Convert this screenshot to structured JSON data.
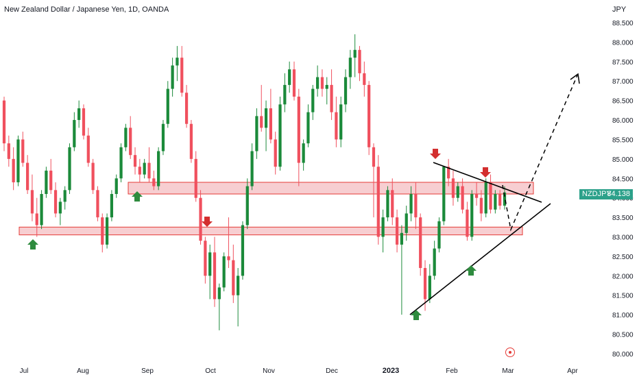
{
  "header": {
    "title": "New Zealand Dollar / Japanese Yen, 1D, OANDA",
    "currency": "JPY"
  },
  "price_tag": {
    "symbol": "NZDJPY",
    "value": "84.138",
    "color": "#2ca18a"
  },
  "icons": {
    "bottom_marker": "target-icon"
  },
  "colors": {
    "up": "#1b8a3a",
    "down": "#f0505e",
    "zone_fill": "#f6c6c9",
    "zone_border": "#e53935",
    "arrow_up": "#2e8b3e",
    "arrow_down": "#d32f2f",
    "trendline": "#000000"
  },
  "chart_data": {
    "type": "candlestick",
    "title": "New Zealand Dollar / Japanese Yen, 1D, OANDA",
    "ylabel": "JPY",
    "ylim": [
      79.9,
      88.7
    ],
    "y_ticks": [
      "80.000",
      "80.500",
      "81.000",
      "81.500",
      "82.000",
      "82.500",
      "83.000",
      "83.500",
      "84.000",
      "84.500",
      "85.000",
      "85.500",
      "86.000",
      "86.500",
      "87.000",
      "87.500",
      "88.000",
      "88.500"
    ],
    "x_ticks": [
      "Jul",
      "Aug",
      "Sep",
      "Oct",
      "Nov",
      "Dec",
      "2023",
      "Feb",
      "Mar",
      "Apr"
    ],
    "last_price": 84.138,
    "series": [
      {
        "ohlc": [
          [
            86.5,
            86.6,
            85.2,
            85.4
          ],
          [
            85.4,
            85.6,
            84.8,
            85.0
          ],
          [
            85.0,
            85.3,
            84.2,
            84.4
          ],
          [
            84.4,
            85.6,
            84.3,
            85.5
          ],
          [
            85.5,
            85.7,
            84.8,
            84.9
          ],
          [
            84.9,
            85.1,
            84.1,
            84.2
          ],
          [
            84.2,
            84.6,
            83.4,
            83.6
          ],
          [
            83.6,
            84.0,
            83.0,
            83.3
          ],
          [
            83.3,
            84.2,
            83.2,
            84.1
          ],
          [
            84.1,
            84.8,
            84.0,
            84.7
          ],
          [
            84.7,
            85.0,
            84.1,
            84.2
          ],
          [
            84.2,
            84.4,
            83.5,
            83.6
          ],
          [
            83.6,
            84.0,
            83.3,
            83.9
          ],
          [
            83.9,
            84.3,
            83.7,
            84.2
          ],
          [
            84.2,
            85.4,
            84.1,
            85.3
          ],
          [
            85.3,
            86.2,
            85.2,
            86.0
          ],
          [
            86.0,
            86.5,
            85.8,
            86.3
          ],
          [
            86.3,
            86.4,
            85.5,
            85.6
          ],
          [
            85.6,
            85.8,
            84.8,
            84.9
          ],
          [
            84.9,
            85.0,
            84.1,
            84.2
          ],
          [
            84.2,
            84.3,
            83.4,
            83.5
          ],
          [
            83.5,
            83.6,
            82.6,
            82.8
          ],
          [
            82.8,
            83.6,
            82.7,
            83.5
          ],
          [
            83.5,
            84.2,
            83.4,
            84.1
          ],
          [
            84.1,
            84.6,
            84.0,
            84.5
          ],
          [
            84.5,
            85.4,
            84.4,
            85.3
          ],
          [
            85.3,
            85.9,
            85.2,
            85.8
          ],
          [
            85.8,
            86.1,
            85.0,
            85.1
          ],
          [
            85.1,
            85.3,
            84.6,
            84.8
          ],
          [
            84.8,
            85.0,
            84.4,
            84.6
          ],
          [
            84.6,
            85.0,
            84.5,
            84.9
          ],
          [
            84.9,
            85.3,
            84.4,
            84.5
          ],
          [
            84.5,
            84.7,
            84.2,
            84.3
          ],
          [
            84.3,
            85.3,
            84.2,
            85.2
          ],
          [
            85.2,
            86.0,
            85.1,
            85.9
          ],
          [
            85.9,
            87.0,
            85.8,
            86.8
          ],
          [
            86.8,
            87.6,
            86.6,
            87.4
          ],
          [
            87.4,
            87.9,
            87.0,
            87.6
          ],
          [
            87.6,
            87.9,
            86.6,
            86.7
          ],
          [
            86.7,
            86.9,
            85.8,
            85.9
          ],
          [
            85.9,
            86.0,
            84.9,
            85.0
          ],
          [
            85.0,
            85.2,
            83.9,
            84.0
          ],
          [
            84.0,
            84.2,
            82.8,
            82.9
          ],
          [
            82.9,
            83.0,
            81.8,
            82.0
          ],
          [
            82.0,
            82.8,
            81.4,
            82.6
          ],
          [
            82.6,
            83.0,
            81.2,
            81.4
          ],
          [
            81.4,
            81.8,
            80.6,
            81.7
          ],
          [
            81.7,
            82.6,
            81.6,
            82.5
          ],
          [
            82.5,
            83.5,
            82.2,
            82.4
          ],
          [
            82.4,
            82.8,
            81.3,
            81.5
          ],
          [
            81.5,
            82.2,
            80.7,
            82.0
          ],
          [
            82.0,
            83.4,
            81.9,
            83.3
          ],
          [
            83.3,
            84.5,
            83.2,
            84.3
          ],
          [
            84.3,
            85.4,
            84.2,
            85.2
          ],
          [
            85.2,
            86.3,
            85.0,
            86.1
          ],
          [
            86.1,
            86.9,
            85.7,
            85.8
          ],
          [
            85.8,
            86.5,
            85.2,
            86.3
          ],
          [
            86.3,
            86.8,
            85.4,
            85.5
          ],
          [
            85.5,
            85.7,
            84.6,
            84.8
          ],
          [
            84.8,
            86.6,
            84.7,
            86.4
          ],
          [
            86.4,
            87.2,
            86.2,
            86.9
          ],
          [
            86.9,
            87.5,
            86.7,
            87.3
          ],
          [
            87.3,
            87.5,
            86.5,
            86.6
          ],
          [
            86.6,
            86.8,
            84.3,
            84.9
          ],
          [
            84.9,
            85.5,
            84.7,
            85.4
          ],
          [
            85.4,
            86.4,
            85.3,
            86.2
          ],
          [
            86.2,
            86.9,
            86.0,
            86.8
          ],
          [
            86.8,
            87.4,
            86.6,
            87.1
          ],
          [
            87.1,
            87.3,
            86.6,
            86.8
          ],
          [
            86.8,
            87.1,
            86.4,
            86.9
          ],
          [
            86.9,
            87.3,
            86.0,
            86.2
          ],
          [
            86.2,
            86.6,
            85.3,
            85.5
          ],
          [
            85.5,
            86.6,
            85.3,
            86.4
          ],
          [
            86.4,
            87.3,
            86.2,
            87.1
          ],
          [
            87.1,
            87.8,
            86.8,
            87.6
          ],
          [
            87.6,
            88.2,
            87.1,
            87.8
          ],
          [
            87.8,
            87.9,
            87.0,
            87.2
          ],
          [
            87.2,
            87.5,
            86.6,
            86.9
          ],
          [
            86.9,
            87.0,
            85.1,
            85.3
          ],
          [
            85.3,
            85.4,
            83.5,
            84.8
          ],
          [
            84.8,
            85.1,
            82.8,
            83.0
          ],
          [
            83.0,
            83.7,
            82.6,
            83.5
          ],
          [
            83.5,
            84.3,
            83.4,
            84.2
          ],
          [
            84.2,
            84.5,
            83.3,
            83.5
          ],
          [
            83.5,
            83.7,
            82.6,
            82.8
          ],
          [
            82.8,
            83.3,
            81.0,
            83.1
          ],
          [
            83.1,
            83.8,
            82.9,
            83.6
          ],
          [
            83.6,
            84.3,
            83.4,
            84.1
          ],
          [
            84.1,
            84.4,
            83.2,
            83.5
          ],
          [
            83.5,
            83.6,
            82.0,
            82.2
          ],
          [
            82.2,
            82.4,
            81.1,
            81.4
          ],
          [
            81.4,
            82.3,
            81.3,
            82.0
          ],
          [
            82.0,
            82.9,
            81.9,
            82.7
          ],
          [
            82.7,
            83.5,
            82.6,
            83.4
          ],
          [
            83.4,
            84.8,
            83.3,
            84.8
          ],
          [
            84.8,
            85.0,
            84.3,
            84.5
          ],
          [
            84.5,
            84.7,
            83.8,
            84.0
          ],
          [
            84.0,
            84.4,
            83.9,
            84.3
          ],
          [
            84.3,
            84.5,
            83.6,
            83.7
          ],
          [
            83.7,
            83.9,
            82.9,
            83.0
          ],
          [
            83.0,
            84.2,
            82.9,
            84.1
          ],
          [
            84.1,
            84.4,
            83.8,
            84.0
          ],
          [
            84.0,
            84.2,
            83.4,
            83.6
          ],
          [
            83.6,
            84.5,
            83.5,
            84.4
          ],
          [
            84.4,
            84.6,
            83.6,
            83.7
          ],
          [
            83.7,
            84.2,
            83.6,
            84.1
          ],
          [
            84.1,
            84.2,
            83.7,
            83.8
          ],
          [
            83.8,
            84.3,
            83.7,
            84.138
          ]
        ]
      }
    ],
    "zones": [
      {
        "low": 84.1,
        "high": 84.4
      },
      {
        "low": 83.05,
        "high": 83.25
      }
    ]
  }
}
